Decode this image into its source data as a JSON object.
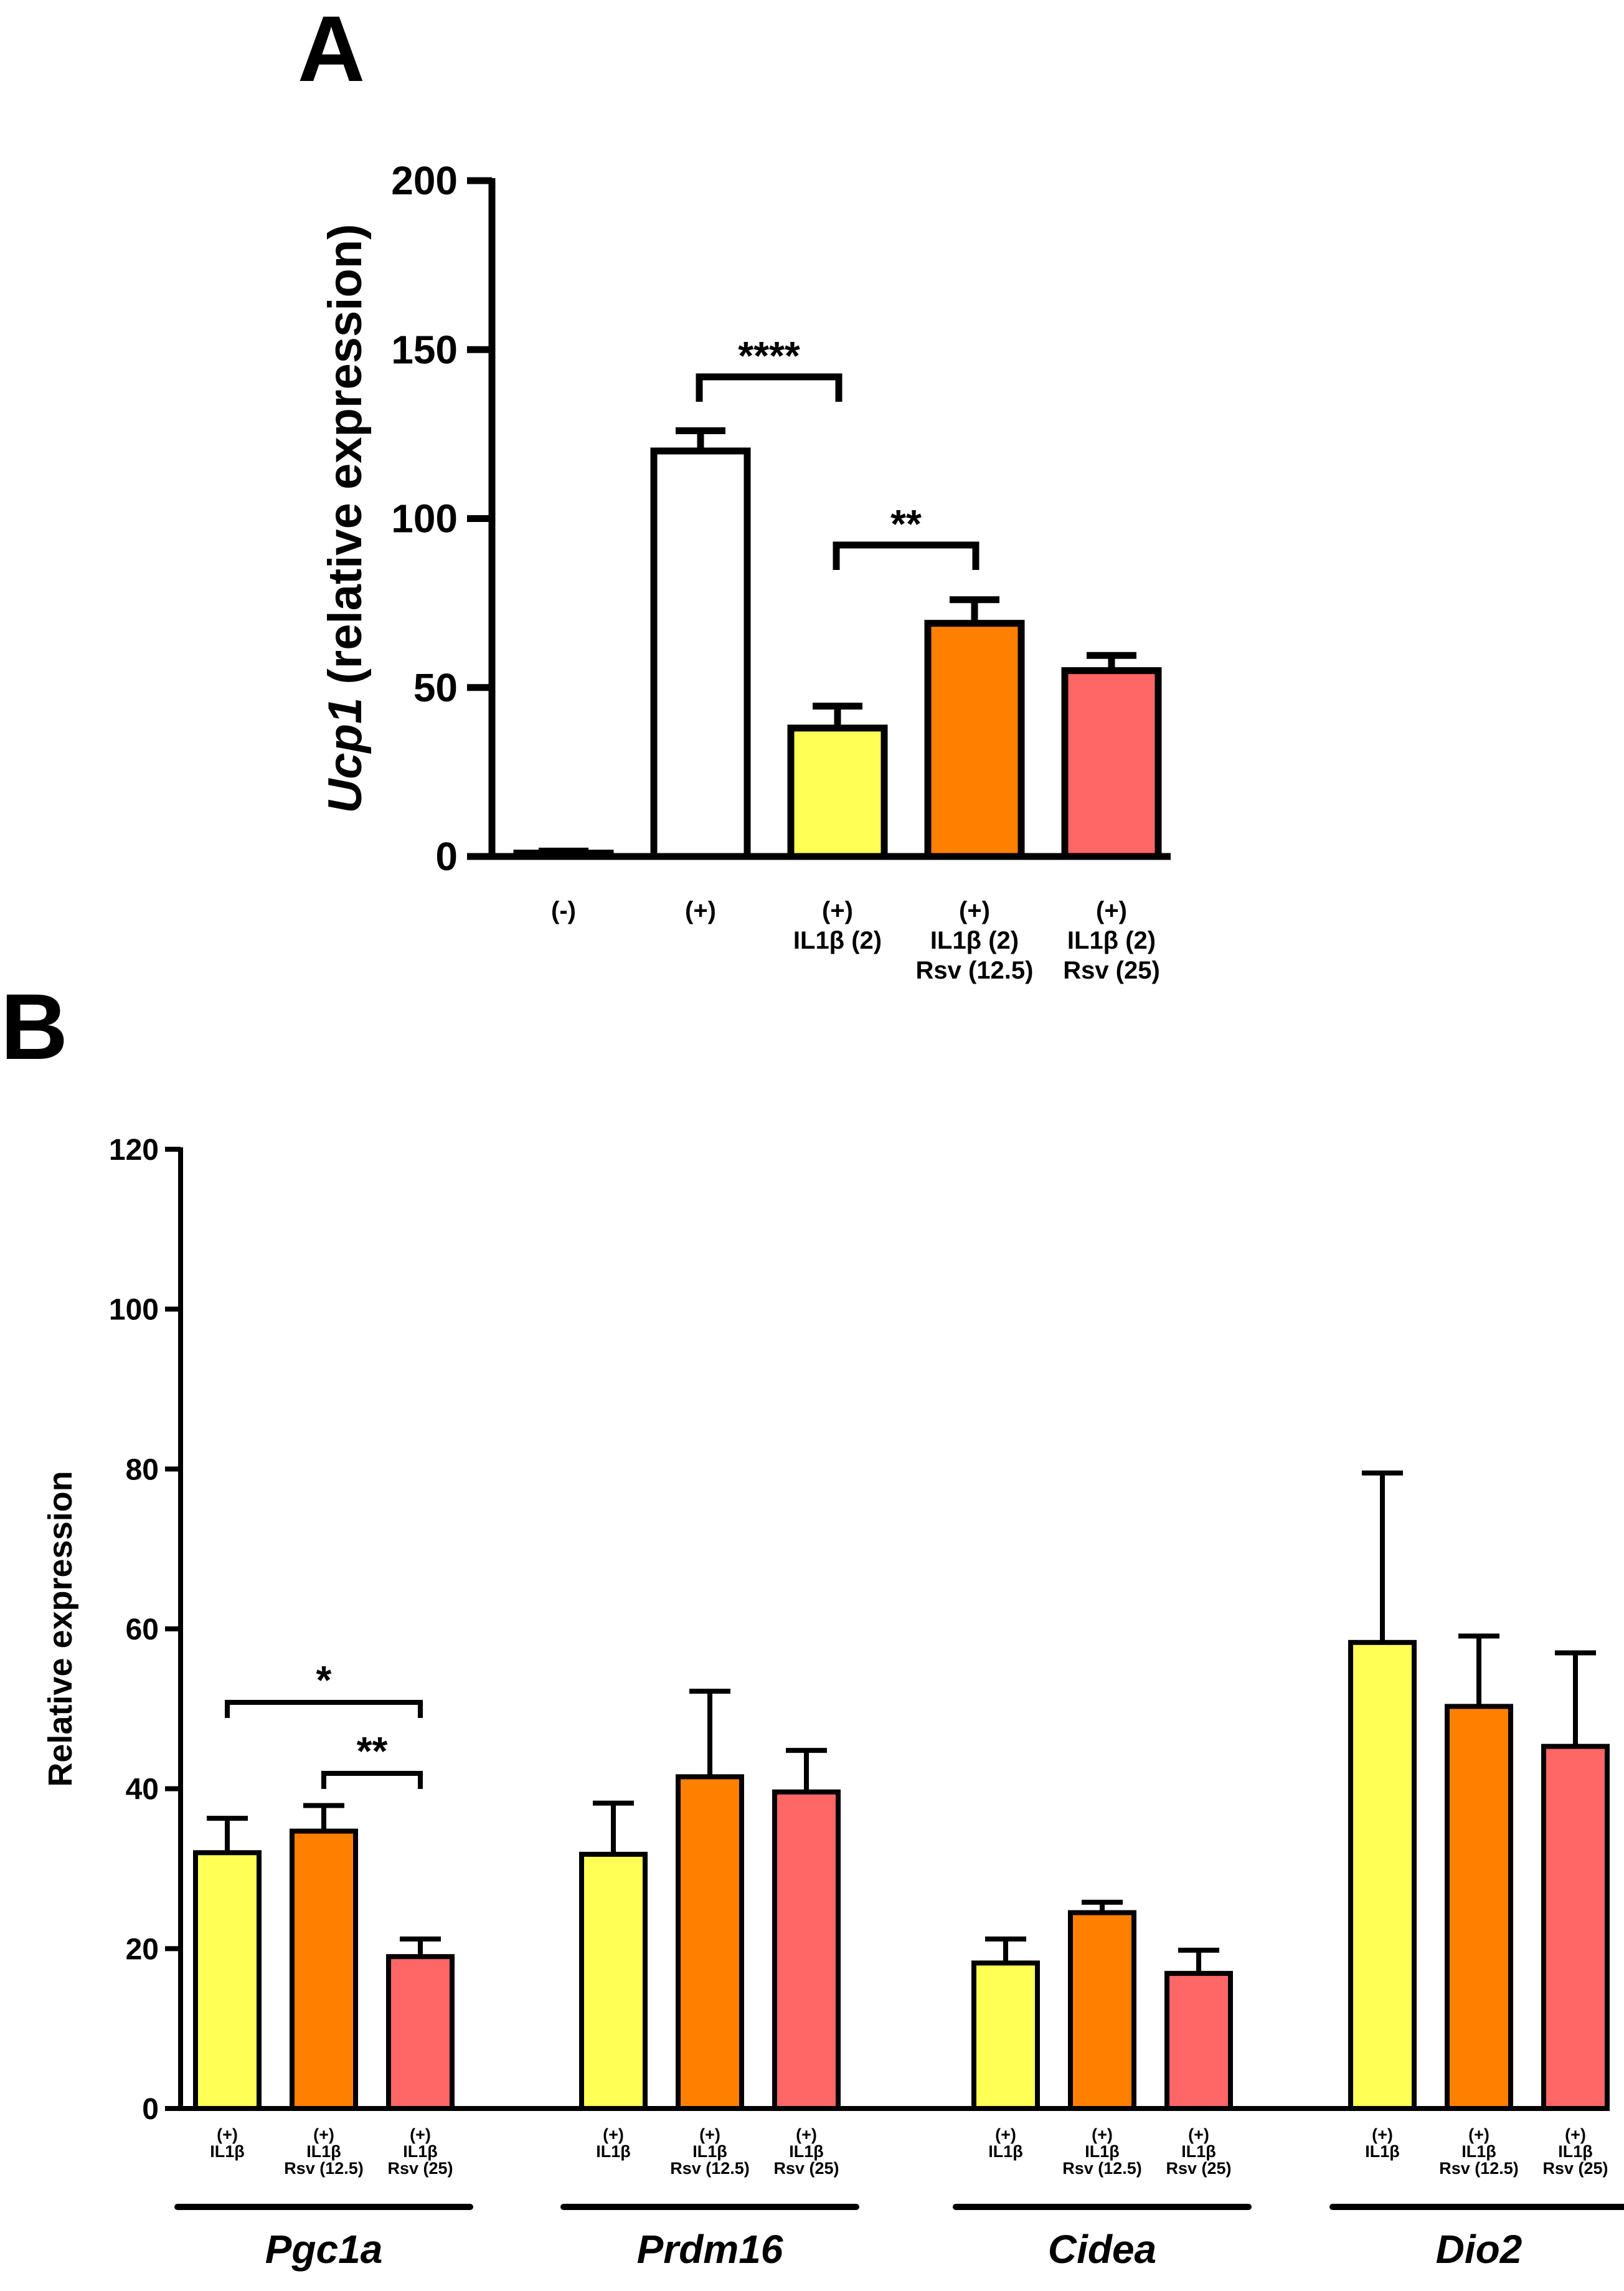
{
  "panels": {
    "a": "A",
    "b": "B"
  },
  "colors": {
    "control": "#ffffff",
    "il1b": "#ffff55",
    "rsv12": "#ff8000",
    "rsv25": "#ff6666",
    "stroke": "#000000"
  },
  "chart_data": [
    {
      "type": "bar",
      "panel": "A",
      "title": "",
      "ylabel_gene": "Ucp1",
      "ylabel_rest": " (relative expression)",
      "ylim": [
        0,
        200
      ],
      "yticks": [
        0,
        50,
        100,
        150,
        200
      ],
      "categories": [
        [
          "(-)"
        ],
        [
          "(+)"
        ],
        [
          "(+)",
          "IL1β (2)"
        ],
        [
          "(+)",
          "IL1β (2)",
          "Rsv (12.5)"
        ],
        [
          "(+)",
          "IL1β (2)",
          "Rsv (25)"
        ]
      ],
      "values": [
        1,
        120,
        38,
        69,
        55
      ],
      "errors": [
        0.6,
        6,
        6.5,
        7,
        4.5
      ],
      "colors": [
        "#ffffff",
        "#ffffff",
        "#ffff55",
        "#ff8000",
        "#ff6666"
      ],
      "significance": [
        {
          "from": 1,
          "to": 2,
          "label": "****"
        },
        {
          "from": 2,
          "to": 3,
          "label": "**"
        }
      ]
    },
    {
      "type": "bar",
      "panel": "B",
      "title": "",
      "ylabel": "Relative expression",
      "ylim": [
        0,
        120
      ],
      "yticks": [
        0,
        20,
        40,
        60,
        80,
        100,
        120
      ],
      "conditions": [
        [
          "(+)",
          "IL1β"
        ],
        [
          "(+)",
          "IL1β",
          "Rsv (12.5)"
        ],
        [
          "(+)",
          "IL1β",
          "Rsv (25)"
        ]
      ],
      "condition_colors": [
        "#ffff55",
        "#ff8000",
        "#ff6666"
      ],
      "groups": [
        "Pgc1a",
        "Prdm16",
        "Cidea",
        "Dio2"
      ],
      "series": [
        {
          "name": "(+) IL1β",
          "values": [
            32,
            31.8,
            18.2,
            58.3
          ],
          "errors": [
            4.3,
            6.4,
            3,
            21.2
          ]
        },
        {
          "name": "(+) IL1β Rsv (12.5)",
          "values": [
            34.7,
            41.5,
            24.5,
            50.3
          ],
          "errors": [
            3.2,
            10.7,
            1.3,
            8.8
          ]
        },
        {
          "name": "(+) IL1β Rsv (25)",
          "values": [
            19,
            39.6,
            16.9,
            45.3
          ],
          "errors": [
            2.2,
            5.2,
            2.9,
            11.7
          ]
        }
      ],
      "significance": [
        {
          "group": 0,
          "from": 0,
          "to": 2,
          "label": "*"
        },
        {
          "group": 0,
          "from": 1,
          "to": 2,
          "label": "**"
        }
      ]
    }
  ]
}
